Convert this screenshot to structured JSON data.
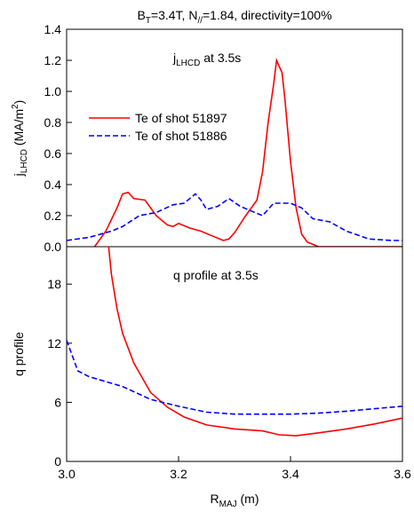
{
  "chart_data": [
    {
      "type": "line",
      "title": [
        "B",
        {
          "sub": "T"
        },
        "=3.4T, N",
        {
          "sub": "//"
        },
        "=1.84, directivity=100%"
      ],
      "annotation": [
        "j",
        {
          "sub": "LHCD"
        },
        " at 3.5s"
      ],
      "y_label": [
        "j",
        {
          "sub": "LHCD"
        },
        " (MA/m",
        {
          "sup": "2"
        },
        ")"
      ],
      "xlim": [
        3.0,
        3.6
      ],
      "ylim": [
        0,
        1.4
      ],
      "yticks": [
        {
          "value": 0,
          "label": "0.0"
        },
        0.2,
        0.4,
        0.6,
        0.8,
        {
          "value": 1,
          "label": "1.0"
        },
        1.2,
        1.4
      ],
      "grid": false,
      "legend": "upper left",
      "series": [
        {
          "name": "Te of shot 51897",
          "color": "#ff0000",
          "linestyle": "solid",
          "x": [
            3.05,
            3.07,
            3.09,
            3.1,
            3.11,
            3.12,
            3.14,
            3.16,
            3.18,
            3.19,
            3.2,
            3.22,
            3.24,
            3.26,
            3.28,
            3.29,
            3.3,
            3.32,
            3.34,
            3.35,
            3.36,
            3.37,
            3.375,
            3.385,
            3.39,
            3.4,
            3.41,
            3.42,
            3.43,
            3.45,
            3.6
          ],
          "values": [
            0,
            0.1,
            0.25,
            0.34,
            0.35,
            0.31,
            0.3,
            0.2,
            0.14,
            0.13,
            0.15,
            0.12,
            0.1,
            0.07,
            0.04,
            0.05,
            0.09,
            0.2,
            0.3,
            0.48,
            0.8,
            1.05,
            1.2,
            1.12,
            0.95,
            0.55,
            0.25,
            0.08,
            0.03,
            0,
            0
          ]
        },
        {
          "name": "Te of shot 51886",
          "color": "#0000ff",
          "linestyle": "dashed",
          "x": [
            3.0,
            3.04,
            3.08,
            3.1,
            3.13,
            3.16,
            3.19,
            3.21,
            3.23,
            3.24,
            3.25,
            3.27,
            3.29,
            3.31,
            3.33,
            3.35,
            3.37,
            3.4,
            3.42,
            3.44,
            3.47,
            3.5,
            3.54,
            3.58,
            3.6
          ],
          "values": [
            0.04,
            0.06,
            0.1,
            0.13,
            0.2,
            0.22,
            0.27,
            0.28,
            0.34,
            0.3,
            0.24,
            0.26,
            0.31,
            0.26,
            0.23,
            0.2,
            0.28,
            0.28,
            0.25,
            0.18,
            0.16,
            0.1,
            0.05,
            0.04,
            0.04
          ]
        }
      ]
    },
    {
      "type": "line",
      "annotation": "q profile at 3.5s",
      "y_label": "q profile",
      "x_label": [
        "R",
        {
          "sub": "MAJ"
        },
        " (m)"
      ],
      "xlim": [
        3.0,
        3.6
      ],
      "xticks": [
        {
          "value": 3,
          "label": "3.0"
        },
        3.2,
        3.4,
        3.6
      ],
      "ylim": [
        0,
        21.8
      ],
      "yticks": [
        0,
        6,
        12,
        18
      ],
      "grid": false,
      "series": [
        {
          "color": "#ff0000",
          "linestyle": "solid",
          "x": [
            3.075,
            3.08,
            3.09,
            3.1,
            3.12,
            3.15,
            3.18,
            3.21,
            3.25,
            3.3,
            3.35,
            3.38,
            3.41,
            3.45,
            3.5,
            3.55,
            3.6
          ],
          "values": [
            21.8,
            19,
            15.5,
            13,
            10,
            7,
            5.5,
            4.5,
            3.7,
            3.3,
            3.1,
            2.7,
            2.6,
            2.9,
            3.3,
            3.8,
            4.4
          ]
        },
        {
          "color": "#0000ff",
          "linestyle": "dashed",
          "x": [
            3.0,
            3.02,
            3.04,
            3.1,
            3.15,
            3.2,
            3.25,
            3.3,
            3.4,
            3.45,
            3.5,
            3.6
          ],
          "values": [
            12.3,
            9.2,
            8.6,
            7.6,
            6.3,
            5.6,
            5.0,
            4.8,
            4.8,
            4.9,
            5.1,
            5.6
          ]
        }
      ]
    }
  ]
}
